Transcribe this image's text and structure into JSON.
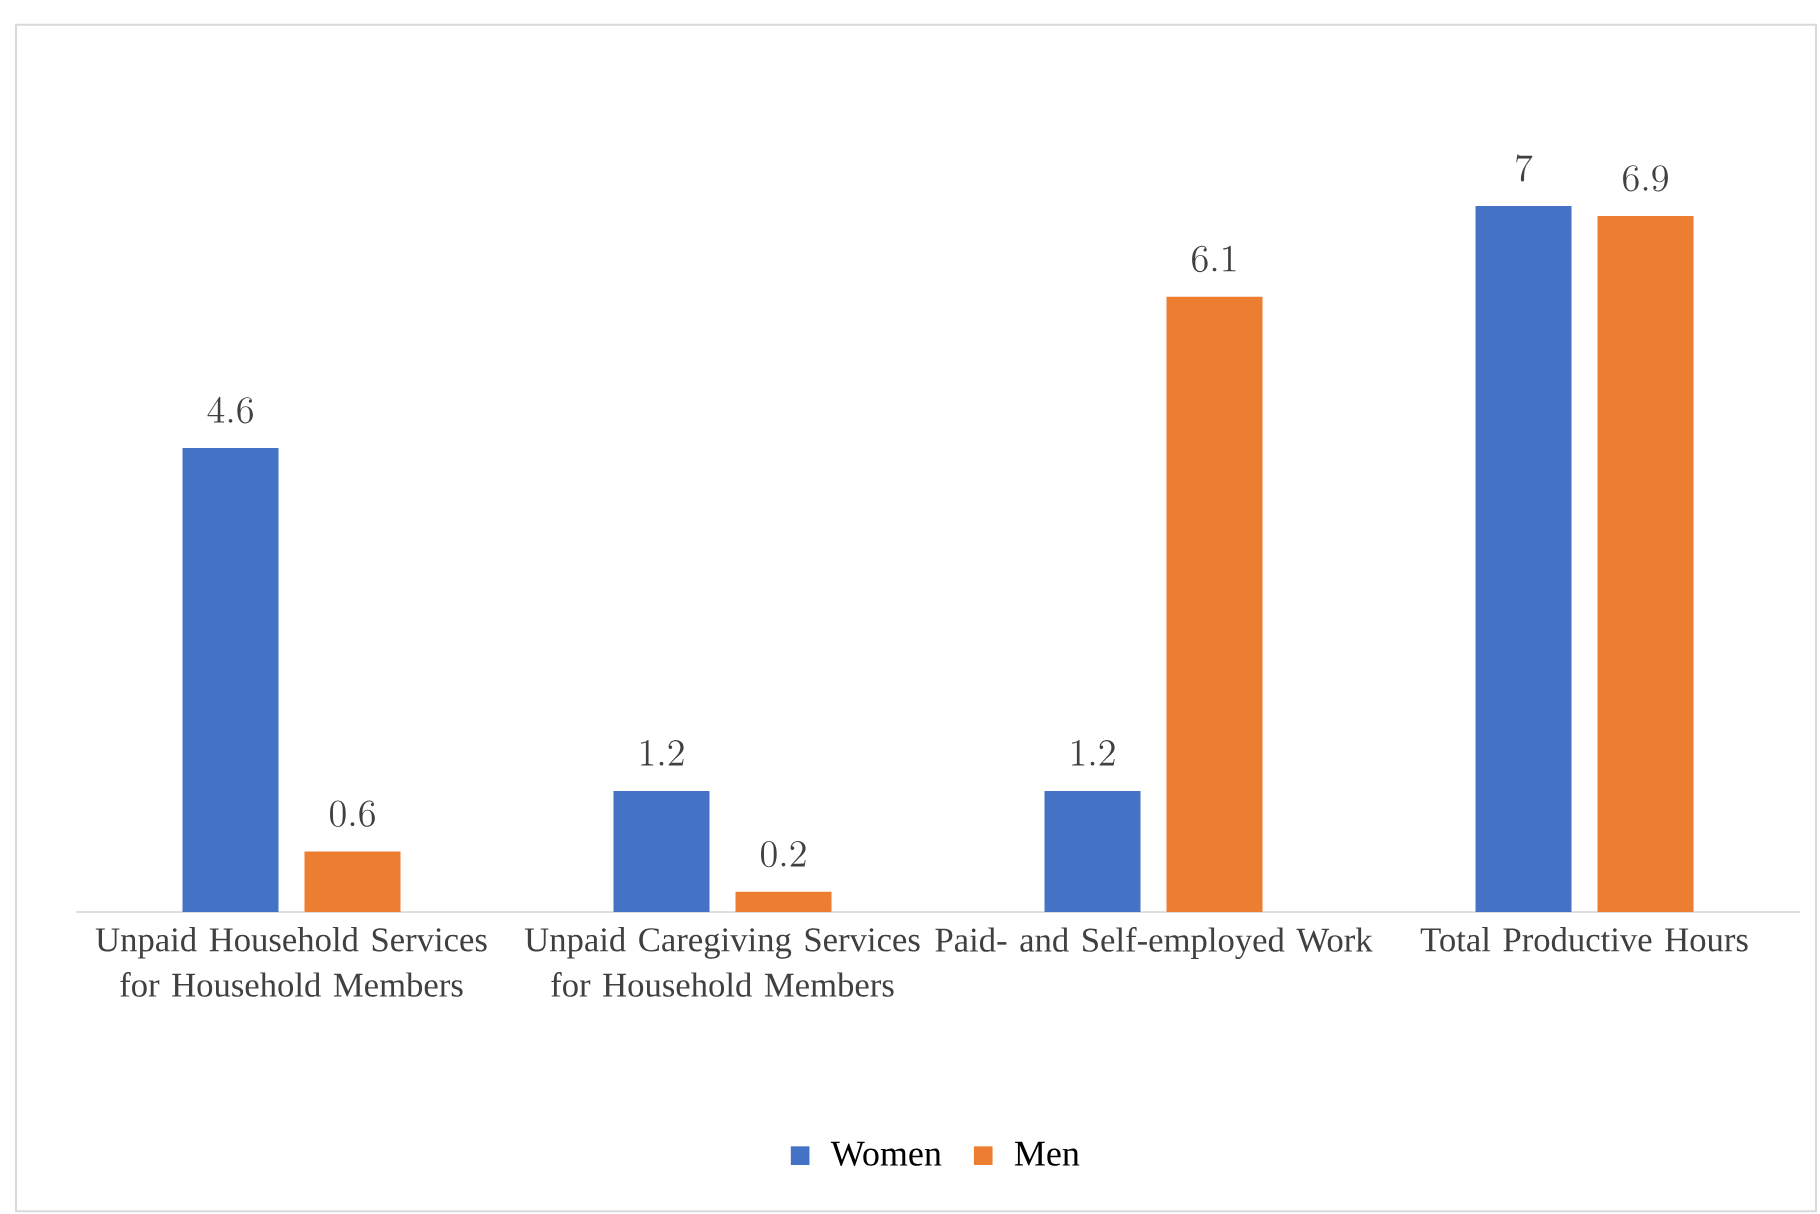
{
  "chart_data": {
    "type": "bar",
    "categories": [
      "Unpaid Household Services for Household Members",
      "Unpaid Caregiving Services for Household Members",
      "Paid- and Self-employed Work",
      "Total Productive Hours"
    ],
    "series": [
      {
        "name": "Women",
        "color": "#4472c4",
        "values": [
          4.6,
          1.2,
          1.2,
          7
        ]
      },
      {
        "name": "Men",
        "color": "#ed7d31",
        "values": [
          0.6,
          0.2,
          6.1,
          6.9
        ]
      }
    ],
    "data_labels": true,
    "legend": "bottom"
  }
}
